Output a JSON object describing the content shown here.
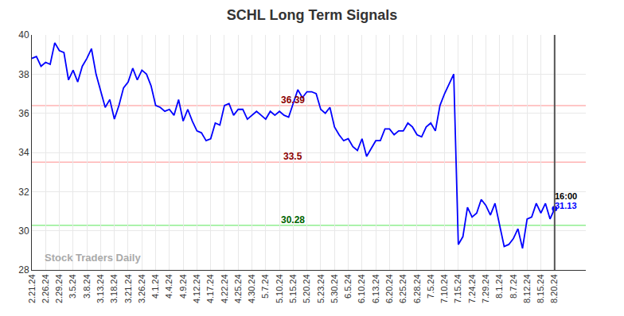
{
  "chart_data": {
    "type": "line",
    "title": "SCHL Long Term Signals",
    "categories": [
      "2.21.24",
      null,
      null,
      "2.26.24",
      null,
      null,
      "2.29.24",
      null,
      null,
      "3.5.24",
      null,
      null,
      "3.8.24",
      null,
      null,
      "3.13.24",
      null,
      null,
      "3.18.24",
      null,
      null,
      "3.21.24",
      null,
      null,
      "3.26.24",
      null,
      null,
      "4.1.24",
      null,
      null,
      "4.4.24",
      null,
      null,
      "4.9.24",
      null,
      null,
      "4.12.24",
      null,
      null,
      "4.17.24",
      null,
      null,
      "4.22.24",
      null,
      null,
      "4.25.24",
      null,
      null,
      "4.30.24",
      null,
      null,
      "5.7.24",
      null,
      null,
      "5.10.24",
      null,
      null,
      "5.15.24",
      null,
      null,
      "5.20.24",
      null,
      null,
      "5.23.24",
      null,
      null,
      "5.30.24",
      null,
      null,
      "6.5.24",
      null,
      null,
      "6.10.24",
      null,
      null,
      "6.13.24",
      null,
      null,
      "6.20.24",
      null,
      null,
      "6.25.24",
      null,
      null,
      "6.28.24",
      null,
      null,
      "7.5.24",
      null,
      null,
      "7.10.24",
      null,
      null,
      "7.15.24",
      null,
      null,
      "7.24.24",
      null,
      null,
      "7.29.24",
      null,
      null,
      "8.1.24",
      null,
      null,
      "8.7.24",
      null,
      null,
      "8.12.24",
      null,
      null,
      "8.15.24",
      null,
      null,
      "8.20.24"
    ],
    "values": [
      38.8,
      38.9,
      38.4,
      38.6,
      38.5,
      39.6,
      39.2,
      39.1,
      37.7,
      38.2,
      37.6,
      38.4,
      38.8,
      39.3,
      38.0,
      37.2,
      36.3,
      36.7,
      35.7,
      36.4,
      37.3,
      37.6,
      38.3,
      37.7,
      38.2,
      38.0,
      37.4,
      36.4,
      36.3,
      36.1,
      36.2,
      35.9,
      36.7,
      35.6,
      36.2,
      35.6,
      35.1,
      35.0,
      34.6,
      34.7,
      35.5,
      35.4,
      36.4,
      36.5,
      35.9,
      36.2,
      36.2,
      35.7,
      35.9,
      36.1,
      35.9,
      35.7,
      36.1,
      35.9,
      36.1,
      35.9,
      35.8,
      36.5,
      37.2,
      36.8,
      37.1,
      37.1,
      37.0,
      36.2,
      36.0,
      36.3,
      35.3,
      34.9,
      34.6,
      34.7,
      34.3,
      34.1,
      34.7,
      33.8,
      34.2,
      34.6,
      34.6,
      35.2,
      35.2,
      34.9,
      35.1,
      35.1,
      35.5,
      35.3,
      34.9,
      34.8,
      35.3,
      35.5,
      35.1,
      36.4,
      37.0,
      37.5,
      38.0,
      29.3,
      29.7,
      31.2,
      30.7,
      30.9,
      31.6,
      31.3,
      30.8,
      31.4,
      30.3,
      29.2,
      29.3,
      29.6,
      30.1,
      29.1,
      30.6,
      30.7,
      31.4,
      30.9,
      31.4,
      30.6,
      31.13
    ],
    "color": "#0000ff",
    "ylim": [
      28,
      40
    ],
    "yticks": [
      28,
      30,
      32,
      34,
      36,
      38,
      40
    ],
    "grid": true,
    "levels": [
      {
        "value": 36.39,
        "label": "36.39",
        "color": "#ffb3b3",
        "label_color": "#8b0000"
      },
      {
        "value": 33.5,
        "label": "33.5",
        "color": "#ffb3b3",
        "label_color": "#8b0000"
      },
      {
        "value": 30.28,
        "label": "30.28",
        "color": "#90ee90",
        "label_color": "#006400"
      }
    ],
    "watermark": "Stock Traders Daily",
    "last_point": {
      "time": "16:00",
      "label": "31.13"
    }
  }
}
